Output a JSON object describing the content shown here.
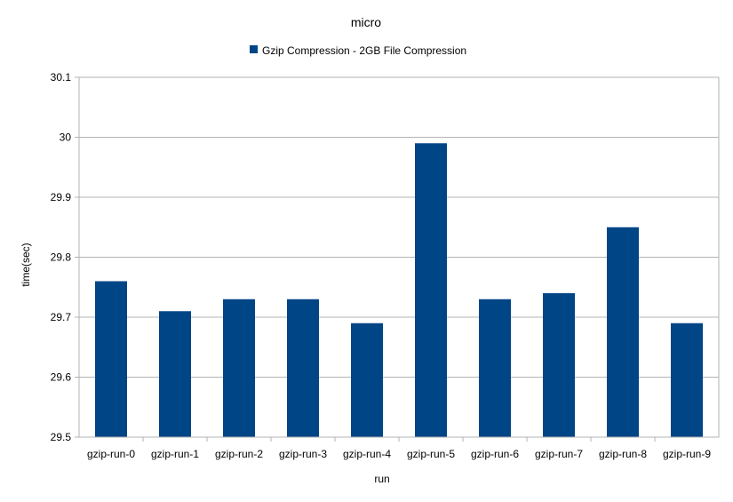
{
  "chart_data": {
    "type": "bar",
    "title": "micro",
    "xlabel": "run",
    "ylabel": "time(sec)",
    "categories": [
      "gzip-run-0",
      "gzip-run-1",
      "gzip-run-2",
      "gzip-run-3",
      "gzip-run-4",
      "gzip-run-5",
      "gzip-run-6",
      "gzip-run-7",
      "gzip-run-8",
      "gzip-run-9"
    ],
    "series": [
      {
        "name": "Gzip Compression - 2GB File Compression",
        "color": "#004586",
        "values": [
          29.76,
          29.71,
          29.73,
          29.73,
          29.69,
          29.99,
          29.73,
          29.74,
          29.85,
          29.69
        ]
      }
    ],
    "ylim": [
      29.5,
      30.1
    ],
    "yticks": [
      "29.5",
      "29.6",
      "29.7",
      "29.8",
      "29.9",
      "30",
      "30.1"
    ],
    "grid": true,
    "legend_position": "top-center"
  }
}
